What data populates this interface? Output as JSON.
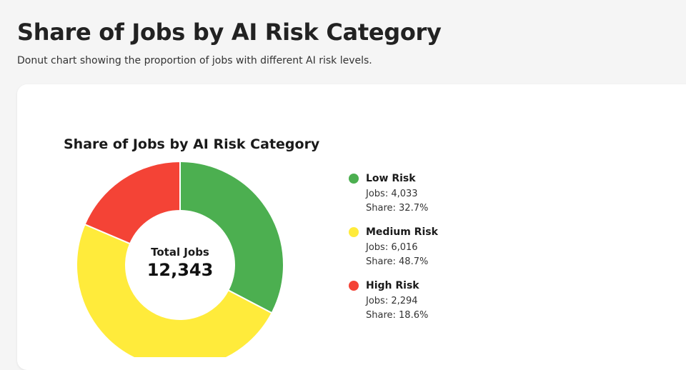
{
  "page": {
    "title": "Share of Jobs by AI Risk Category",
    "subtitle": "Donut chart showing the proportion of jobs with different AI risk levels."
  },
  "chart_data": {
    "type": "pie",
    "title": "Share of Jobs by AI Risk Category",
    "donut": true,
    "center_label": "Total Jobs",
    "center_value": "12,343",
    "legend_position": "right",
    "slices": [
      {
        "name": "Low Risk",
        "jobs": 4033,
        "share": 32.7,
        "color": "#4caf50",
        "jobs_text": "Jobs: 4,033",
        "share_text": "Share: 32.7%"
      },
      {
        "name": "Medium Risk",
        "jobs": 6016,
        "share": 48.7,
        "color": "#ffeb3b",
        "jobs_text": "Jobs: 6,016",
        "share_text": "Share: 48.7%"
      },
      {
        "name": "High Risk",
        "jobs": 2294,
        "share": 18.6,
        "color": "#f44336",
        "jobs_text": "Jobs: 2,294",
        "share_text": "Share: 18.6%"
      }
    ]
  }
}
